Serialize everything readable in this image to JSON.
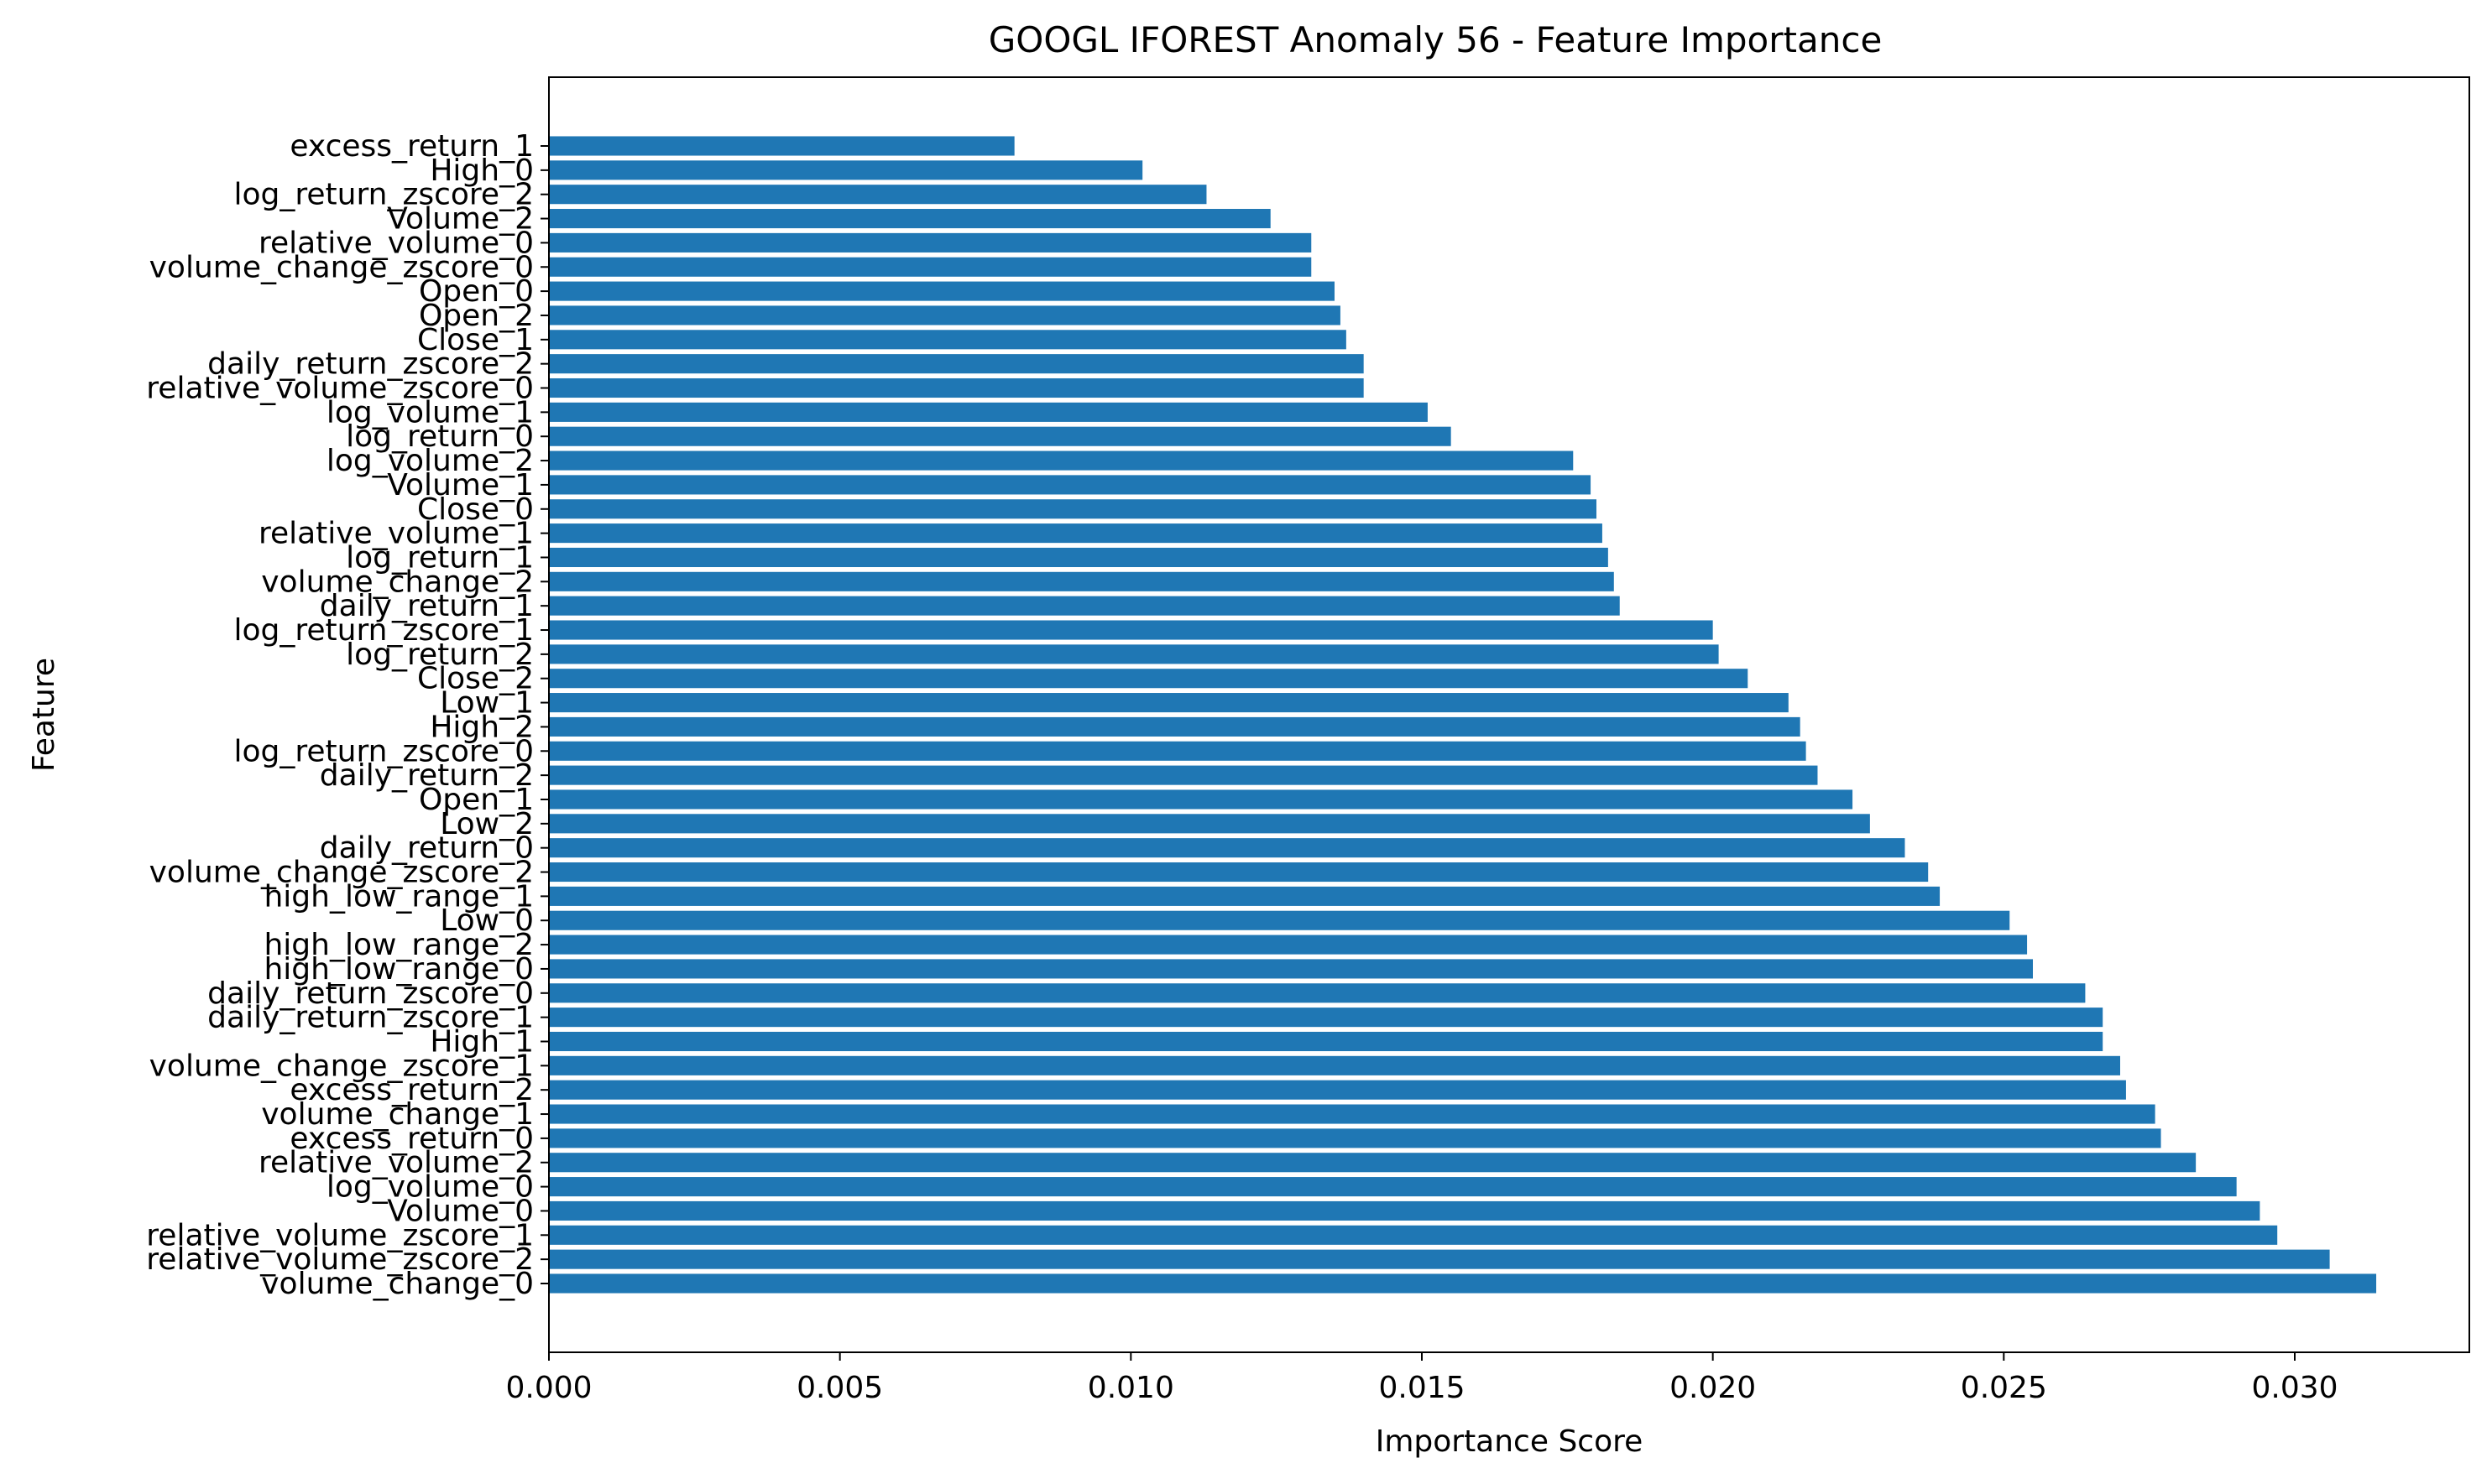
{
  "chart_data": {
    "type": "bar",
    "orientation": "horizontal",
    "title": "GOOGL IFOREST Anomaly 56 - Feature Importance",
    "xlabel": "Importance Score",
    "ylabel": "Feature",
    "xlim": [
      0,
      0.033
    ],
    "xticks": [
      "0.000",
      "0.005",
      "0.010",
      "0.015",
      "0.020",
      "0.025",
      "0.030"
    ],
    "grid": false,
    "bar_color": "#1f77b4",
    "categories": [
      "excess_return_1",
      "High_0",
      "log_return_zscore_2",
      "Volume_2",
      "relative_volume_0",
      "volume_change_zscore_0",
      "Open_0",
      "Open_2",
      "Close_1",
      "daily_return_zscore_2",
      "relative_volume_zscore_0",
      "log_volume_1",
      "log_return_0",
      "log_volume_2",
      "Volume_1",
      "Close_0",
      "relative_volume_1",
      "log_return_1",
      "volume_change_2",
      "daily_return_1",
      "log_return_zscore_1",
      "log_return_2",
      "Close_2",
      "Low_1",
      "High_2",
      "log_return_zscore_0",
      "daily_return_2",
      "Open_1",
      "Low_2",
      "daily_return_0",
      "volume_change_zscore_2",
      "high_low_range_1",
      "Low_0",
      "high_low_range_2",
      "high_low_range_0",
      "daily_return_zscore_0",
      "daily_return_zscore_1",
      "High_1",
      "volume_change_zscore_1",
      "excess_return_2",
      "volume_change_1",
      "excess_return_0",
      "relative_volume_2",
      "log_volume_0",
      "Volume_0",
      "relative_volume_zscore_1",
      "relative_volume_zscore_2",
      "volume_change_0"
    ],
    "values": [
      0.008,
      0.0102,
      0.0113,
      0.0124,
      0.0131,
      0.0131,
      0.0135,
      0.0136,
      0.0137,
      0.014,
      0.014,
      0.0151,
      0.0155,
      0.0176,
      0.0179,
      0.018,
      0.0181,
      0.0182,
      0.0183,
      0.0184,
      0.02,
      0.0201,
      0.0206,
      0.0213,
      0.0215,
      0.0216,
      0.0218,
      0.0224,
      0.0227,
      0.0233,
      0.0237,
      0.0239,
      0.0251,
      0.0254,
      0.0255,
      0.0264,
      0.0267,
      0.0267,
      0.027,
      0.0271,
      0.0276,
      0.0277,
      0.0283,
      0.029,
      0.0294,
      0.0297,
      0.0306,
      0.0314
    ]
  }
}
